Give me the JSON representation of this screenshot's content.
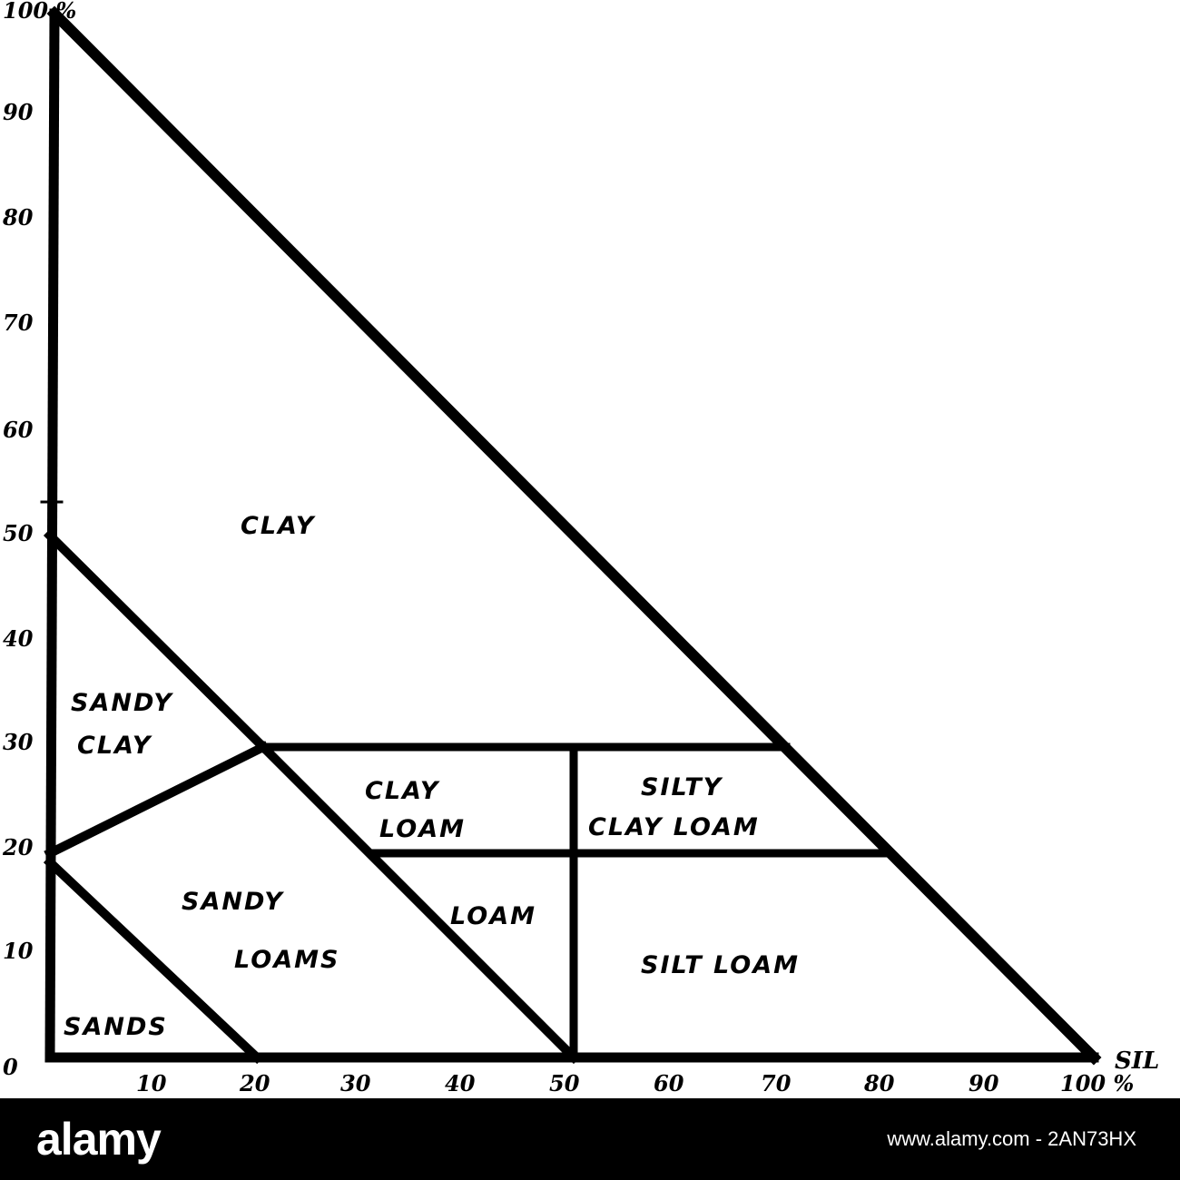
{
  "diagram": {
    "vertical_axis": {
      "ticks": [
        "0",
        "10",
        "20",
        "30",
        "40",
        "50",
        "60",
        "70",
        "80",
        "90",
        "100 %"
      ]
    },
    "horizontal_axis": {
      "ticks": [
        "10",
        "20",
        "30",
        "40",
        "50",
        "60",
        "70",
        "80",
        "90",
        "100 %"
      ],
      "end_label": "SIL"
    },
    "regions": {
      "clay": "CLAY",
      "sandy_clay": [
        "SANDY",
        "CLAY"
      ],
      "clay_loam": [
        "CLAY",
        "LOAM"
      ],
      "silty_clay_loam": [
        "SILTY",
        "CLAY LOAM"
      ],
      "sandy_loams": [
        "SANDY",
        "LOAMS"
      ],
      "loam": "LOAM",
      "silt_loam": "SILT LOAM",
      "sands": "SANDS"
    }
  },
  "watermark": {
    "logo": "alamy",
    "url": "www.alamy.com - 2AN73HX"
  }
}
